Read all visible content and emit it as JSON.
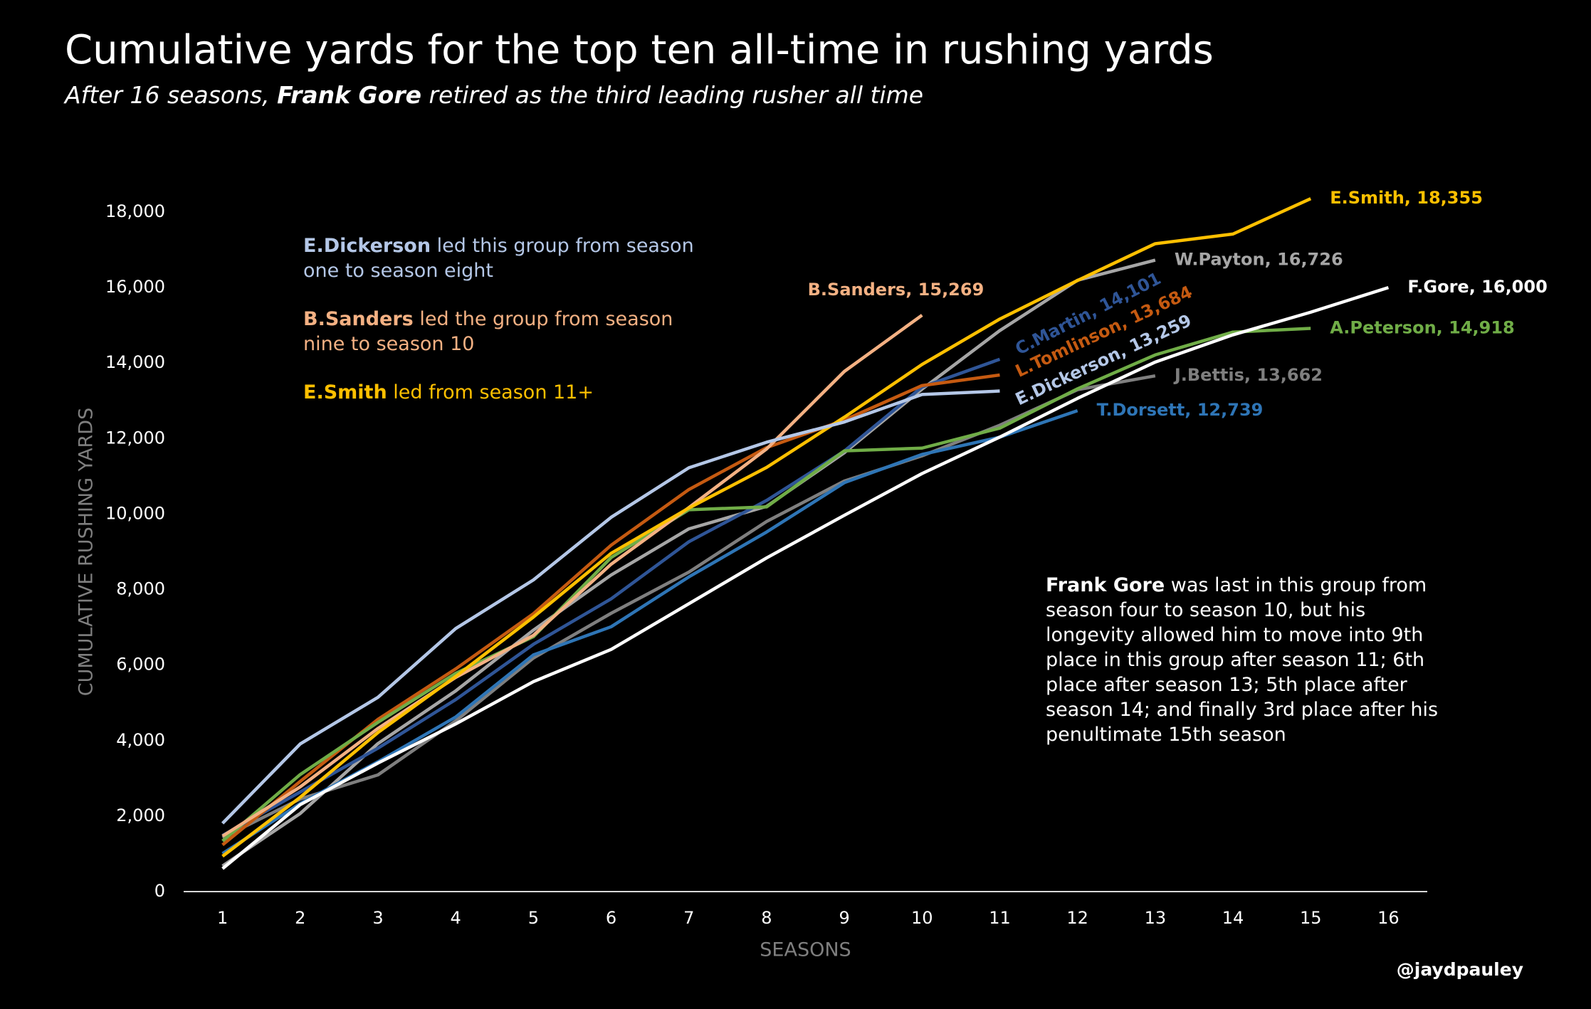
{
  "chart_data": {
    "type": "line",
    "title": "Cumulative yards for the top ten all-time in rushing yards",
    "subtitle": [
      {
        "text": "After 16 seasons, "
      },
      {
        "text": "Frank Gore",
        "bold": true
      },
      {
        "text": " retired as the third leading rusher all time"
      }
    ],
    "xlabel": "SEASONS",
    "ylabel": "CUMULATIVE RUSHING YARDS",
    "credit": "@jaydpauley",
    "x": [
      1,
      2,
      3,
      4,
      5,
      6,
      7,
      8,
      9,
      10,
      11,
      12,
      13,
      14,
      15,
      16
    ],
    "xlim": [
      0.5,
      16.5
    ],
    "xticks": [
      1,
      2,
      3,
      4,
      5,
      6,
      7,
      8,
      9,
      10,
      11,
      12,
      13,
      14,
      15,
      16
    ],
    "ylim": [
      0,
      18000
    ],
    "yticks": [
      0,
      {
        "value": 2000,
        "label": "2,000"
      },
      {
        "value": 4000,
        "label": "4,000"
      },
      {
        "value": 6000,
        "label": "6,000"
      },
      {
        "value": 8000,
        "label": "8,000"
      },
      {
        "value": 10000,
        "label": "10,000"
      },
      {
        "value": 12000,
        "label": "12,000"
      },
      {
        "value": 14000,
        "label": "14,000"
      },
      {
        "value": 16000,
        "label": "16,000"
      },
      {
        "value": 18000,
        "label": "18,000"
      }
    ],
    "series": [
      {
        "label": "J.Bettis, 13,662",
        "color": "#7f7f7f",
        "values": [
          1429,
          2454,
          3091,
          4522,
          6187,
          7372,
          8463,
          9804,
          10876,
          11542,
          12353,
          13294,
          13662,
          null,
          null,
          null
        ]
      },
      {
        "label": "W.Payton, 16,726",
        "color": "#a6a6a6",
        "values": [
          679,
          2069,
          3921,
          5316,
          6926,
          8386,
          9608,
          10204,
          11625,
          13309,
          14860,
          16193,
          16726,
          null,
          null,
          null
        ]
      },
      {
        "label": "T.Dorsett, 12,739",
        "color": "#2e75b6",
        "values": [
          1007,
          2332,
          3439,
          4624,
          6270,
          7015,
          8336,
          9525,
          10832,
          11580,
          12036,
          12739,
          null,
          null,
          null,
          null
        ]
      },
      {
        "label": "C.Martin, 14,101",
        "color": "#2f5597",
        "values": [
          1487,
          2639,
          3799,
          5086,
          6550,
          7754,
          9267,
          10361,
          11669,
          13366,
          14101,
          null,
          null,
          null,
          null,
          null
        ]
      },
      {
        "label": "L.Tomlinson, 13,684",
        "color": "#c55a11",
        "values": [
          1236,
          2919,
          4564,
          5899,
          7361,
          9176,
          10650,
          11760,
          12490,
          13404,
          13684,
          null,
          null,
          null,
          null,
          null
        ]
      },
      {
        "label": "A.Peterson, 14,918",
        "color": "#70ad47",
        "values": [
          1341,
          3101,
          4484,
          5782,
          6752,
          8849,
          10115,
          10190,
          11675,
          11747,
          12276,
          13318,
          14216,
          14820,
          14918,
          null
        ]
      },
      {
        "label": "B.Sanders, 15,269",
        "color": "#f4b183",
        "values": [
          1470,
          2774,
          4322,
          5674,
          6789,
          8672,
          10172,
          11725,
          13778,
          15269,
          null,
          null,
          null,
          null,
          null,
          null
        ]
      },
      {
        "label": "E.Smith, 18,355",
        "color": "#ffc000",
        "values": [
          937,
          2500,
          4213,
          5699,
          7272,
          8961,
          10160,
          11235,
          12566,
          13963,
          15166,
          16187,
          17162,
          17418,
          18355,
          null
        ]
      },
      {
        "label": "E.Dickerson, 13,259",
        "color": "#b4c7e7",
        "values": [
          1808,
          3913,
          5147,
          6968,
          8256,
          9915,
          11226,
          11903,
          12439,
          13168,
          13259,
          null,
          null,
          null,
          null,
          null
        ]
      },
      {
        "label": "F.Gore, 16,000",
        "color": "#ffffff",
        "values": [
          608,
          2303,
          3405,
          4441,
          5561,
          6414,
          7625,
          8839,
          9967,
          11073,
          12040,
          13065,
          14026,
          14748,
          15347,
          16000
        ]
      }
    ],
    "notes": [
      {
        "color": "#b4c7e7",
        "parts": [
          {
            "text": "E.Dickerson",
            "bold": true
          },
          {
            "text": " led this group from season one to season eight"
          }
        ]
      },
      {
        "color": "#f4b183",
        "parts": [
          {
            "text": "B.Sanders",
            "bold": true
          },
          {
            "text": " led the group from season nine to season 10"
          }
        ]
      },
      {
        "color": "#ffc000",
        "parts": [
          {
            "text": "E.Smith",
            "bold": true
          },
          {
            "text": " led from season 11+"
          }
        ]
      }
    ],
    "gore_note": {
      "color": "#ffffff",
      "parts": [
        {
          "text": "Frank Gore",
          "bold": true
        },
        {
          "text": " was last in this group from season four to season 10, but his longevity allowed him to move into 9th place in this group after season 11; 6th place after season 13;  5th place after season 14; and finally 3rd place after his penultimate 15th season"
        }
      ]
    }
  }
}
